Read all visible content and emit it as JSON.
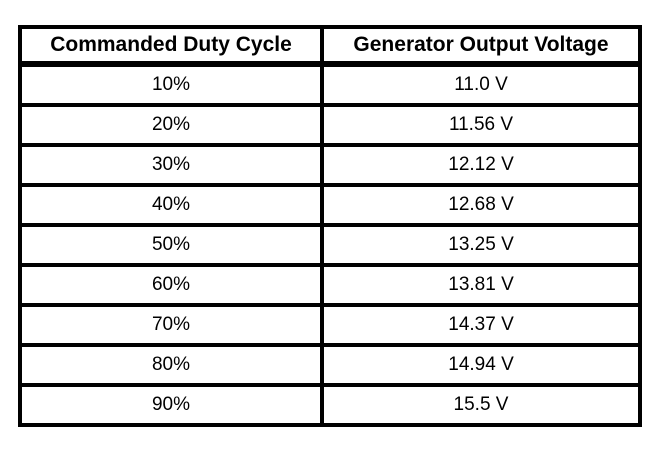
{
  "page": {
    "background_color": "#ffffff",
    "border_color": "#000000",
    "text_color": "#000000"
  },
  "chart_data": {
    "type": "table",
    "title": "",
    "columns": [
      "Commanded Duty Cycle",
      "Generator Output Voltage"
    ],
    "duty_cycle_percent": [
      10,
      20,
      30,
      40,
      50,
      60,
      70,
      80,
      90
    ],
    "output_voltage_volts": [
      11.0,
      11.56,
      12.12,
      12.68,
      13.25,
      13.81,
      14.37,
      14.94,
      15.5
    ],
    "layout": {
      "grid": "thick black cell borders",
      "header_style": "bold",
      "cell_alignment": "center"
    }
  },
  "table": {
    "headers": [
      "Commanded Duty Cycle",
      "Generator Output Voltage"
    ],
    "rows": [
      [
        "10%",
        "11.0 V"
      ],
      [
        "20%",
        "11.56 V"
      ],
      [
        "30%",
        "12.12 V"
      ],
      [
        "40%",
        "12.68 V"
      ],
      [
        "50%",
        "13.25 V"
      ],
      [
        "60%",
        "13.81 V"
      ],
      [
        "70%",
        "14.37 V"
      ],
      [
        "80%",
        "14.94 V"
      ],
      [
        "90%",
        "15.5 V"
      ]
    ]
  }
}
